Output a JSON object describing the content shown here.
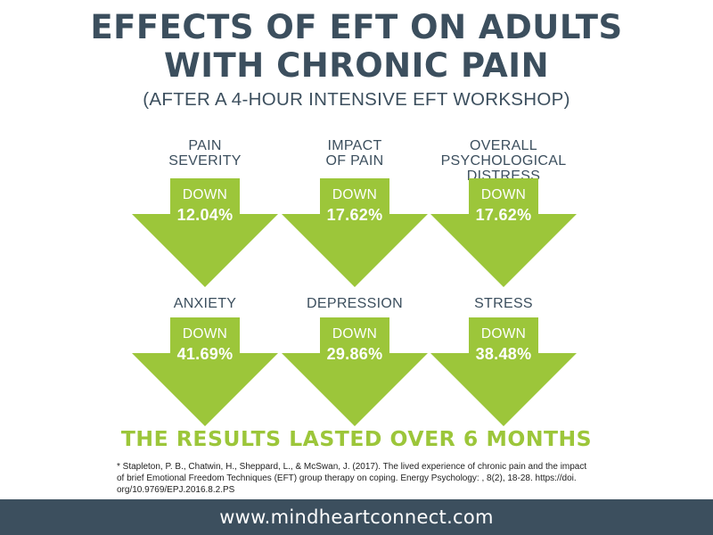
{
  "header": {
    "title_line1": "EFFECTS OF EFT ON ADULTS",
    "title_line2": "WITH CHRONIC PAIN",
    "subtitle": "(AFTER A 4-HOUR INTENSIVE EFT WORKSHOP)"
  },
  "colors": {
    "accent": "#9cc63a",
    "dark": "#3c4f5e"
  },
  "metrics": [
    {
      "label": [
        "PAIN",
        "SEVERITY"
      ],
      "direction": "DOWN",
      "value": "12.04%"
    },
    {
      "label": [
        "IMPACT",
        "OF PAIN"
      ],
      "direction": "DOWN",
      "value": "17.62%"
    },
    {
      "label": [
        "OVERALL",
        "PSYCHOLOGICAL",
        "DISTRESS"
      ],
      "direction": "DOWN",
      "value": "17.62%"
    },
    {
      "label": [
        "ANXIETY"
      ],
      "direction": "DOWN",
      "value": "41.69%"
    },
    {
      "label": [
        "DEPRESSION"
      ],
      "direction": "DOWN",
      "value": "29.86%"
    },
    {
      "label": [
        "STRESS"
      ],
      "direction": "DOWN",
      "value": "38.48%"
    }
  ],
  "results": "THE RESULTS LASTED OVER 6 MONTHS",
  "citation": {
    "line1": "* Stapleton, P. B., Chatwin, H., Sheppard, L., & McSwan, J. (2017). The lived experience of chronic pain and the impact",
    "line2": "of brief Emotional Freedom Techniques (EFT) group therapy on coping. Energy Psychology: , 8(2), 18-28. https://doi.",
    "line3": "org/10.9769/EPJ.2016.8.2.PS"
  },
  "footer": {
    "url": "www.mindheartconnect.com"
  }
}
